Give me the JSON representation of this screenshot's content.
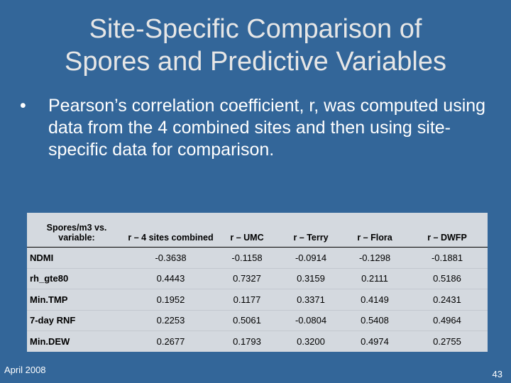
{
  "slide": {
    "title_line1": "Site-Specific Comparison of",
    "title_line2": "Spores and Predictive Variables",
    "bullet_symbol": "•",
    "bullet_text": "Pearson’s correlation coefficient, r, was computed using data from the 4 combined sites and then using site-specific data for comparison."
  },
  "table": {
    "headers": [
      "Spores/m3 vs. variable:",
      "r – 4 sites combined",
      "r – UMC",
      "r – Terry",
      "r – Flora",
      "r – DWFP"
    ],
    "rows": [
      [
        "NDMI",
        "-0.3638",
        "-0.1158",
        "-0.0914",
        "-0.1298",
        "-0.1881"
      ],
      [
        "rh_gte80",
        "0.4443",
        "0.7327",
        "0.3159",
        "0.2111",
        "0.5186"
      ],
      [
        "Min.TMP",
        "0.1952",
        "0.1177",
        "0.3371",
        "0.4149",
        "0.2431"
      ],
      [
        "7-day RNF",
        "0.2253",
        "0.5061",
        "-0.0804",
        "0.5408",
        "0.4964"
      ],
      [
        "Min.DEW",
        "0.2677",
        "0.1793",
        "0.3200",
        "0.4974",
        "0.2755"
      ]
    ]
  },
  "footer": {
    "date": "April 2008",
    "page_number": "43"
  },
  "colors": {
    "background": "#336699",
    "table_background": "#d4d9df"
  }
}
